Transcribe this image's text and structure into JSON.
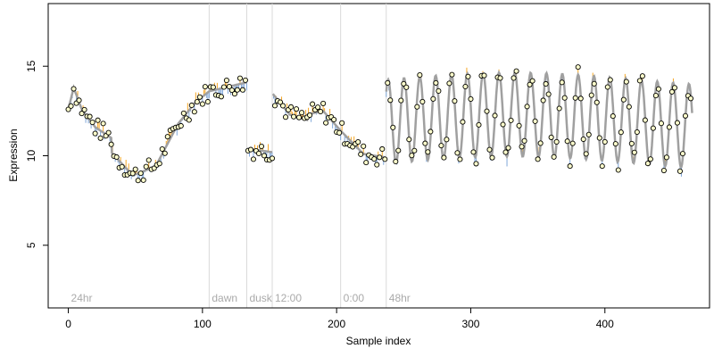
{
  "chart_data": {
    "type": "line",
    "xlabel": "Sample index",
    "ylabel": "Expression",
    "xlim": [
      -15,
      478
    ],
    "ylim": [
      1.5,
      18.5
    ],
    "x_ticks": [
      0,
      100,
      200,
      300,
      400
    ],
    "y_ticks": [
      5,
      10,
      15
    ],
    "grid": false,
    "colors": {
      "fitted": "#a0a0a0",
      "residual_pos": "#f5a623",
      "residual_neg": "#7fa7d9",
      "point_fill": "#ffffcc",
      "point_stroke": "#000000",
      "divider": "#d9d9d9",
      "phase_label": "#aaaaaa"
    },
    "phases": [
      {
        "label": "24hr",
        "start": 0,
        "end": 133
      },
      {
        "label": "dawn",
        "start": 105,
        "end": 133
      },
      {
        "label": "dusk",
        "start": 133,
        "end": 152
      },
      {
        "label": "12:00",
        "start": 152,
        "end": 203
      },
      {
        "label": "0:00",
        "start": 203,
        "end": 237
      },
      {
        "label": "48hr",
        "start": 237,
        "end": 465
      }
    ],
    "dividers": [
      105,
      133,
      152,
      203,
      237
    ],
    "x_max": 465,
    "segments": [
      {
        "start": 0,
        "end": 4,
        "from": 12.6,
        "to": 13.8
      },
      {
        "start": 4,
        "end": 10,
        "from": 13.8,
        "to": 12.6
      },
      {
        "start": 10,
        "end": 20,
        "from": 12.6,
        "to": 11.6
      },
      {
        "start": 20,
        "end": 32,
        "from": 11.6,
        "to": 11.0
      },
      {
        "start": 32,
        "end": 48,
        "from": 10.2,
        "to": 8.9
      },
      {
        "start": 48,
        "end": 65,
        "from": 8.9,
        "to": 9.4
      },
      {
        "start": 65,
        "end": 82,
        "from": 9.4,
        "to": 11.8
      },
      {
        "start": 82,
        "end": 95,
        "from": 11.8,
        "to": 13.0
      },
      {
        "start": 95,
        "end": 105,
        "from": 13.0,
        "to": 13.6
      },
      {
        "start": 105,
        "end": 133,
        "from": 13.6,
        "to": 14.1
      },
      {
        "start": 133,
        "end": 152,
        "from": 10.4,
        "to": 10.2
      },
      {
        "start": 152,
        "end": 165,
        "from": 13.5,
        "to": 12.3
      },
      {
        "start": 165,
        "end": 178,
        "from": 12.3,
        "to": 12.0
      },
      {
        "start": 178,
        "end": 190,
        "from": 12.3,
        "to": 12.5
      },
      {
        "start": 190,
        "end": 203,
        "from": 12.5,
        "to": 11.4
      },
      {
        "start": 203,
        "end": 220,
        "from": 11.4,
        "to": 10.1
      },
      {
        "start": 220,
        "end": 237,
        "from": 10.1,
        "to": 9.9
      }
    ],
    "oscillation": {
      "start": 237,
      "end": 465,
      "period": 11.8,
      "mean": 11.9,
      "amplitude": 2.35,
      "drift": 0.4
    },
    "points_per_unit": 1,
    "noise_seed": 7,
    "noise_amplitude": 0.55
  }
}
